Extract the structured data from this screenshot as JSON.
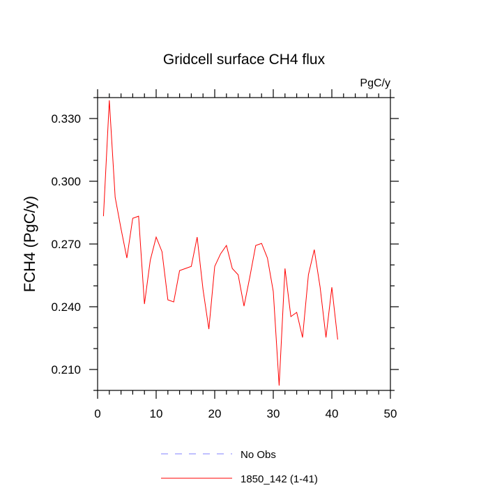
{
  "chart_data": {
    "type": "line",
    "title": "Gridcell surface CH4 flux",
    "units_label": "PgC/y",
    "ylabel": "FCH4  (PgC/y)",
    "xlabel": "",
    "xlim": [
      0,
      50
    ],
    "ylim": [
      0.2,
      0.34
    ],
    "x_ticks": [
      0,
      10,
      20,
      30,
      40,
      50
    ],
    "y_ticks": [
      0.21,
      0.24,
      0.27,
      0.3,
      0.33
    ],
    "y_tick_labels": [
      "0.210",
      "0.240",
      "0.270",
      "0.300",
      "0.330"
    ],
    "grid": false,
    "legend_position": "bottom",
    "series": [
      {
        "name": "No Obs",
        "color": "#8080ff",
        "dash": "dashed",
        "x": [],
        "y": []
      },
      {
        "name": "1850_142 (1-41)",
        "color": "#ff0000",
        "dash": "solid",
        "x": [
          1,
          2,
          3,
          4,
          5,
          6,
          7,
          8,
          9,
          10,
          11,
          12,
          13,
          14,
          15,
          16,
          17,
          18,
          19,
          20,
          21,
          22,
          23,
          24,
          25,
          26,
          27,
          28,
          29,
          30,
          31,
          32,
          33,
          34,
          35,
          36,
          37,
          38,
          39,
          40,
          41
        ],
        "y": [
          0.2833,
          0.3387,
          0.2923,
          0.2773,
          0.2633,
          0.2823,
          0.2833,
          0.2413,
          0.2623,
          0.2733,
          0.2663,
          0.2433,
          0.2423,
          0.2573,
          0.2583,
          0.2593,
          0.2733,
          0.2483,
          0.2293,
          0.2593,
          0.2653,
          0.2693,
          0.2583,
          0.2553,
          0.2403,
          0.2543,
          0.2693,
          0.2703,
          0.2633,
          0.2473,
          0.2023,
          0.2583,
          0.2353,
          0.2373,
          0.2253,
          0.2553,
          0.2673,
          0.2493,
          0.2253,
          0.2493,
          0.2243
        ]
      }
    ]
  }
}
